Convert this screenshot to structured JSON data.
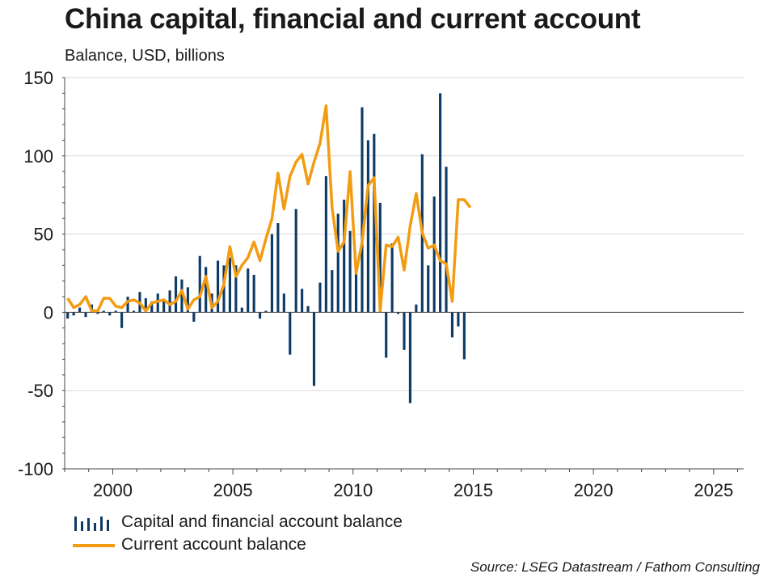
{
  "chart_data": {
    "type": "bar",
    "title": "China capital, financial and current account",
    "subtitle": "Balance, USD, billions",
    "source": "Source: LSEG Datastream / Fathom Consulting",
    "ylim": [
      -100,
      150
    ],
    "xlim": [
      1998.0,
      2026.25
    ],
    "y_ticks": [
      -100,
      -50,
      0,
      50,
      100,
      150
    ],
    "x_ticks": [
      2000,
      2005,
      2010,
      2015,
      2020,
      2025
    ],
    "grid": true,
    "legend_position": "bottom-left",
    "colors": {
      "capital": "#0d3a66",
      "current": "#f39c12",
      "grid": "#d9d9d9",
      "axis": "#444444"
    },
    "series": [
      {
        "name": "Capital and financial account balance",
        "type": "bar",
        "x": [
          1998.125,
          1998.375,
          1998.625,
          1998.875,
          1999.125,
          1999.375,
          1999.625,
          1999.875,
          2000.125,
          2000.375,
          2000.625,
          2000.875,
          2001.125,
          2001.375,
          2001.625,
          2001.875,
          2002.125,
          2002.375,
          2002.625,
          2002.875,
          2003.125,
          2003.375,
          2003.625,
          2003.875,
          2004.125,
          2004.375,
          2004.625,
          2004.875,
          2005.125,
          2005.375,
          2005.625,
          2005.875,
          2006.125,
          2006.375,
          2006.625,
          2006.875,
          2007.125,
          2007.375,
          2007.625,
          2007.875,
          2008.125,
          2008.375,
          2008.625,
          2008.875,
          2009.125,
          2009.375,
          2009.625,
          2009.875,
          2010.125,
          2010.375,
          2010.625,
          2010.875,
          2011.125,
          2011.375,
          2011.625,
          2011.875,
          2012.125,
          2012.375,
          2012.625,
          2012.875,
          2013.125,
          2013.375,
          2013.625,
          2013.875,
          2014.125,
          2014.375,
          2014.625,
          2014.875
        ],
        "values": [
          -4,
          -2,
          3,
          -3,
          5,
          -1,
          1,
          -2,
          1,
          -10,
          10,
          1,
          13,
          9,
          7,
          12,
          8,
          14,
          23,
          21,
          16,
          -6,
          36,
          29,
          12,
          33,
          30,
          35,
          30,
          3,
          28,
          24,
          -4,
          1,
          50,
          57,
          12,
          -27,
          66,
          15,
          4,
          -47,
          19,
          87,
          27,
          63,
          72,
          52,
          30,
          131,
          110,
          114,
          70,
          -29,
          44,
          -1,
          -24,
          -58,
          5,
          101,
          30,
          74,
          140,
          93,
          -16,
          -9,
          -30,
          0
        ]
      },
      {
        "name": "Current account balance",
        "type": "line",
        "x": [
          1998.125,
          1998.375,
          1998.625,
          1998.875,
          1999.125,
          1999.375,
          1999.625,
          1999.875,
          2000.125,
          2000.375,
          2000.625,
          2000.875,
          2001.125,
          2001.375,
          2001.625,
          2001.875,
          2002.125,
          2002.375,
          2002.625,
          2002.875,
          2003.125,
          2003.375,
          2003.625,
          2003.875,
          2004.125,
          2004.375,
          2004.625,
          2004.875,
          2005.125,
          2005.375,
          2005.625,
          2005.875,
          2006.125,
          2006.375,
          2006.625,
          2006.875,
          2007.125,
          2007.375,
          2007.625,
          2007.875,
          2008.125,
          2008.375,
          2008.625,
          2008.875,
          2009.125,
          2009.375,
          2009.625,
          2009.875,
          2010.125,
          2010.375,
          2010.625,
          2010.875,
          2011.125,
          2011.375,
          2011.625,
          2011.875,
          2012.125,
          2012.375,
          2012.625,
          2012.875,
          2013.125,
          2013.375,
          2013.625,
          2013.875,
          2014.125,
          2014.375,
          2014.625,
          2014.875
        ],
        "values": [
          9,
          3,
          5,
          10,
          1,
          1,
          9,
          9,
          4,
          3,
          7,
          8,
          6,
          1,
          6,
          7,
          8,
          5,
          7,
          14,
          2,
          8,
          10,
          23,
          3,
          7,
          18,
          42,
          23,
          30,
          35,
          45,
          33,
          47,
          60,
          89,
          66,
          87,
          96,
          101,
          82,
          96,
          108,
          132,
          67,
          39,
          45,
          90,
          25,
          45,
          81,
          86,
          1,
          43,
          42,
          48,
          27,
          55,
          76,
          51,
          41,
          43,
          33,
          31,
          7,
          72,
          72,
          67
        ]
      }
    ]
  }
}
